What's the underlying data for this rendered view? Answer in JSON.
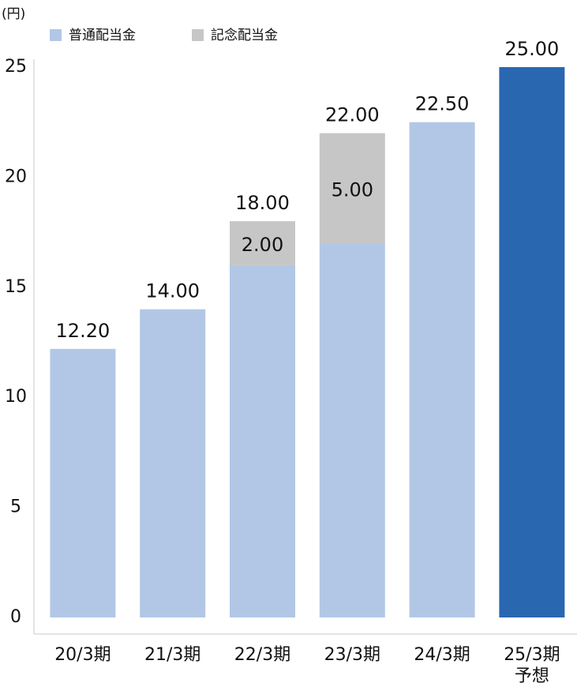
{
  "chart_data": {
    "type": "stacked_bar",
    "y_label": "(円)",
    "categories": [
      "20/3期",
      "21/3期",
      "22/3期",
      "23/3期",
      "24/3期",
      "25/3期\n予想"
    ],
    "series": [
      {
        "name": "普通配当金",
        "color": "#b2c7e6",
        "colors": [
          "#b2c7e6",
          "#b2c7e6",
          "#b2c7e6",
          "#b2c7e6",
          "#b2c7e6",
          "#2a67b1"
        ],
        "values": [
          12.2,
          14,
          16,
          17,
          22.5,
          25
        ]
      },
      {
        "name": "記念配当金",
        "color": "#c6c6c6",
        "values": [
          null,
          null,
          2,
          5,
          null,
          null
        ],
        "value_labels": [
          null,
          null,
          "2.00",
          "5.00",
          null,
          null
        ]
      }
    ],
    "totals": [
      12.2,
      14,
      18,
      22,
      22.5,
      25
    ],
    "total_labels": [
      "12.20",
      "14.00",
      "18.00",
      "22.00",
      "22.50",
      "25.00"
    ],
    "ylim": [
      0,
      25
    ],
    "yticks": [
      0,
      5,
      10,
      15,
      20,
      25
    ],
    "grid": false
  }
}
